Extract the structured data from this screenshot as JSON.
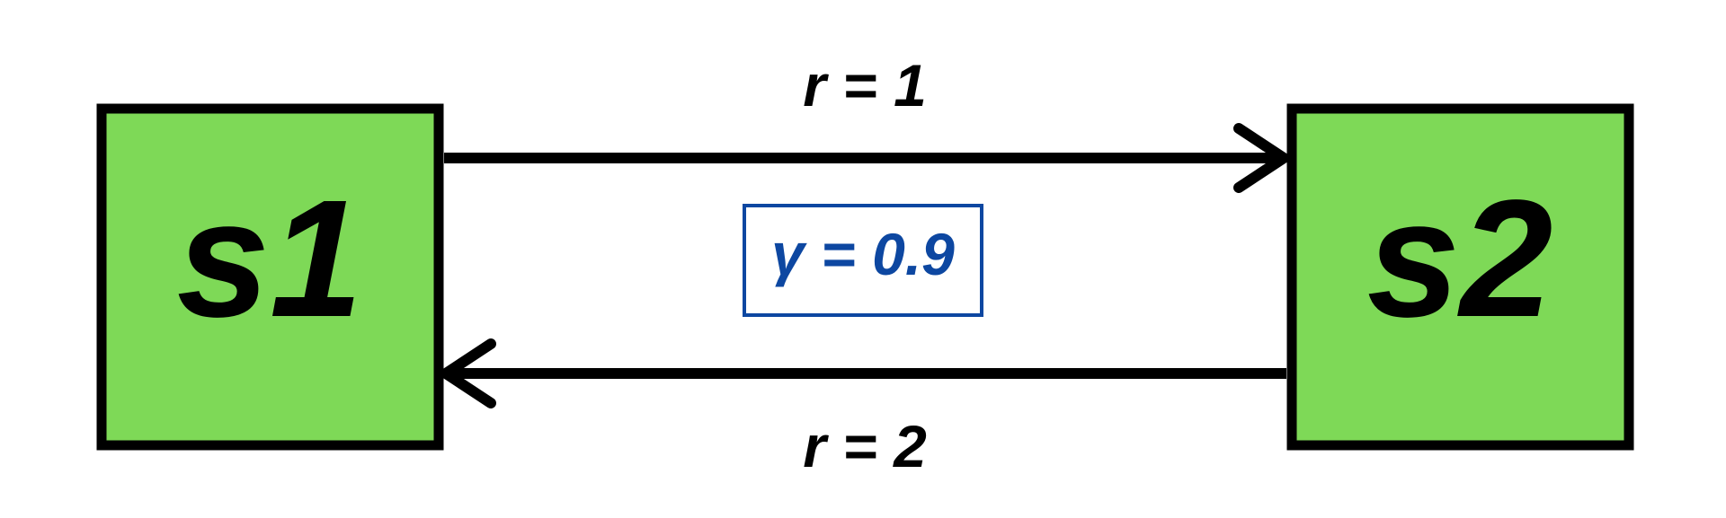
{
  "diagram": {
    "states": [
      {
        "id": "s1",
        "label": "s1"
      },
      {
        "id": "s2",
        "label": "s2"
      }
    ],
    "transitions": [
      {
        "from": "s1",
        "to": "s2",
        "label": "r = 1"
      },
      {
        "from": "s2",
        "to": "s1",
        "label": "r = 2"
      }
    ],
    "discount": {
      "label": "γ = 0.9"
    }
  },
  "colors": {
    "state_fill": "#7ed957",
    "state_border": "#000000",
    "arrow": "#000000",
    "discount_text": "#0d47a1",
    "discount_border": "#0d47a1"
  }
}
